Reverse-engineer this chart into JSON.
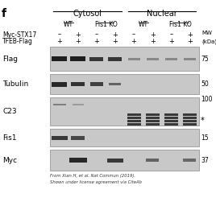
{
  "fig_label": "f",
  "title_cytosol": "Cytosol",
  "title_nuclear": "Nuclear",
  "row1_label": "Myc-STX17",
  "row2_label": "TFEB-Flag",
  "row1_vals": [
    "–",
    "+",
    "–",
    "+",
    "–",
    "+",
    "–",
    "+"
  ],
  "row2_vals": [
    "+",
    "+",
    "+",
    "+",
    "+",
    "+",
    "+",
    "+"
  ],
  "mw_label": "MW",
  "mw_unit": "(kDa)",
  "blot_labels": [
    "Flag",
    "Tubulin",
    "C23",
    "Fis1",
    "Myc"
  ],
  "mw_vals": [
    "75",
    "50",
    "100",
    "15",
    "37"
  ],
  "citation_line1": "From Xian H, et al. Nat Commun (2019).",
  "citation_line2": "Shown under license agreement via CiteAb",
  "bg_color": "#ffffff",
  "blot_bg": "#c8c8c8",
  "band_dark": "#111111",
  "blot_border": "#888888"
}
